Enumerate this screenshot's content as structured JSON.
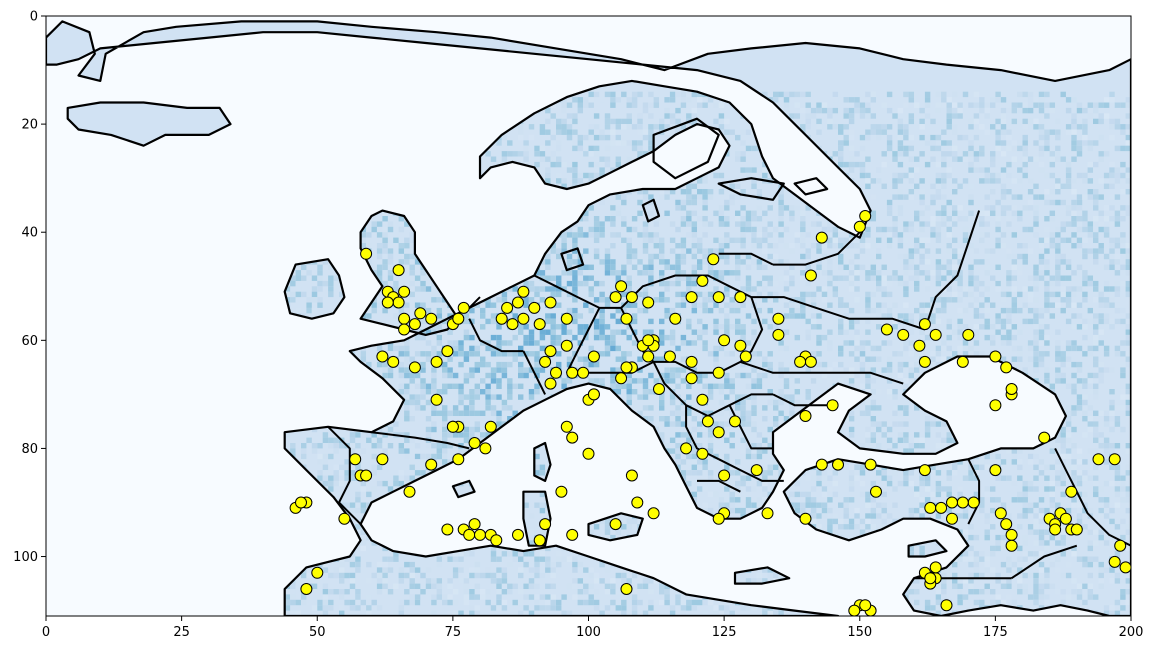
{
  "chart_data": {
    "type": "heatmap",
    "title": "",
    "xlabel": "",
    "ylabel": "",
    "xlim": [
      0,
      200
    ],
    "ylim": [
      111,
      0
    ],
    "y_axis_inverted": true,
    "grid": false,
    "colormap": "Blues",
    "background_color": "#f7fbff",
    "contour_color": "#000000",
    "marker_color": "#ffff00",
    "marker_edge_color": "#000000",
    "x_ticks": [
      0,
      25,
      50,
      75,
      100,
      125,
      150,
      175,
      200
    ],
    "y_ticks": [
      0,
      20,
      40,
      60,
      80,
      100
    ],
    "x_tick_labels": [
      "0",
      "25",
      "50",
      "75",
      "100",
      "125",
      "150",
      "175",
      "200"
    ],
    "y_tick_labels": [
      "0",
      "20",
      "40",
      "60",
      "80",
      "100"
    ],
    "stations": {
      "x": [
        59,
        65,
        63,
        64,
        65,
        66,
        63,
        66,
        66,
        69,
        71,
        68,
        75,
        74,
        77,
        76,
        62,
        64,
        68,
        72,
        72,
        75,
        76,
        79,
        81,
        82,
        84,
        86,
        85,
        87,
        88,
        88,
        90,
        93,
        91,
        93,
        96,
        92,
        96,
        97,
        101,
        99,
        101,
        105,
        106,
        108,
        107,
        111,
        112,
        112,
        119,
        116,
        121,
        123,
        124,
        128,
        125,
        128,
        129,
        135,
        135,
        140,
        141,
        139,
        141,
        143,
        150,
        151,
        155,
        158,
        161,
        162,
        164,
        162,
        169,
        170,
        175,
        177,
        178,
        178,
        175,
        184,
        194,
        197,
        175,
        189,
        187,
        185,
        186,
        186,
        188,
        189,
        190,
        198,
        197,
        199,
        176,
        177,
        178,
        178,
        171,
        169,
        163,
        167,
        162,
        152,
        153,
        145,
        146,
        143,
        140,
        140,
        133,
        131,
        125,
        125,
        121,
        122,
        124,
        127,
        121,
        118,
        119,
        124,
        119,
        115,
        113,
        110,
        111,
        111,
        108,
        107,
        106,
        100,
        100,
        101,
        96,
        97,
        94,
        93,
        95,
        91,
        92,
        97,
        77,
        78,
        80,
        82,
        83,
        87,
        79,
        74,
        76,
        75,
        71,
        67,
        57,
        58,
        59,
        62,
        46,
        48,
        47,
        55,
        50,
        48,
        107,
        108,
        109,
        105,
        112,
        124,
        150,
        149,
        152,
        151,
        162,
        164,
        164,
        163,
        166,
        163,
        165,
        167
      ],
      "y": [
        44,
        47,
        51,
        52,
        53,
        51,
        53,
        56,
        58,
        55,
        56,
        57,
        57,
        62,
        54,
        56,
        63,
        64,
        65,
        64,
        71,
        76,
        76,
        79,
        80,
        76,
        56,
        57,
        54,
        53,
        56,
        51,
        54,
        53,
        57,
        62,
        56,
        64,
        61,
        66,
        63,
        66,
        70,
        52,
        50,
        52,
        56,
        53,
        60,
        61,
        52,
        56,
        49,
        45,
        52,
        52,
        60,
        61,
        63,
        56,
        59,
        63,
        64,
        64,
        48,
        41,
        39,
        37,
        58,
        59,
        61,
        57,
        59,
        64,
        64,
        59,
        63,
        65,
        70,
        69,
        72,
        78,
        82,
        82,
        84,
        88,
        92,
        93,
        94,
        95,
        93,
        95,
        95,
        98,
        101,
        102,
        92,
        94,
        96,
        98,
        90,
        90,
        91,
        93,
        84,
        83,
        88,
        72,
        83,
        83,
        74,
        93,
        92,
        84,
        85,
        92,
        81,
        75,
        77,
        75,
        71,
        80,
        67,
        66,
        64,
        63,
        69,
        61,
        60,
        63,
        65,
        65,
        67,
        71,
        81,
        70,
        76,
        78,
        66,
        68,
        88,
        97,
        94,
        96,
        95,
        96,
        96,
        96,
        97,
        96,
        94,
        95,
        82,
        76,
        83,
        88,
        82,
        85,
        85,
        82,
        91,
        90,
        90,
        93,
        103,
        106,
        106,
        85,
        90,
        94,
        92,
        93,
        109,
        110,
        110,
        109,
        103,
        104,
        102,
        105,
        109,
        104,
        91,
        90
      ]
    }
  }
}
